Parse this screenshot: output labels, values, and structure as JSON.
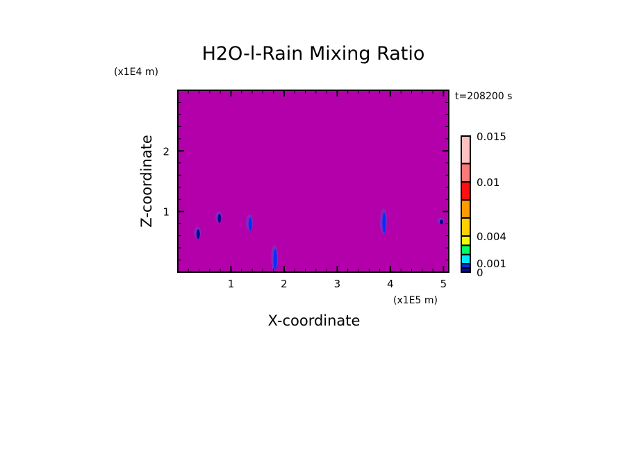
{
  "chart_data": {
    "type": "heatmap",
    "title": "H2O-l-Rain Mixing Ratio",
    "xlabel": "X-coordinate",
    "ylabel": "Z-coordinate",
    "x_unit": "(x1E5 m)",
    "y_unit": "(x1E4 m)",
    "time_label": "t=208200 s",
    "xlim": [
      0,
      5.1
    ],
    "ylim": [
      0,
      3.0
    ],
    "x_ticks": [
      "1",
      "2",
      "3",
      "4",
      "5"
    ],
    "y_ticks": [
      "1",
      "2"
    ],
    "background_color": "#b400aa",
    "colorbar": {
      "levels": [
        0,
        0.0005,
        0.001,
        0.002,
        0.003,
        0.004,
        0.006,
        0.008,
        0.01,
        0.012,
        0.015
      ],
      "colors": [
        "#0a0a96",
        "#0030ff",
        "#00e8ff",
        "#00ff60",
        "#f0ff00",
        "#ffd000",
        "#ff9a00",
        "#ff1010",
        "#ff7878",
        "#ffc0c0"
      ],
      "tick_labels": [
        "0",
        "0.001",
        "0.004",
        "0.01",
        "0.015"
      ],
      "tick_values": [
        0,
        0.001,
        0.004,
        0.01,
        0.015
      ]
    },
    "features": [
      {
        "x": 0.37,
        "z_bottom": 0.55,
        "z_top": 0.75,
        "value": 0.0004
      },
      {
        "x": 0.77,
        "z_bottom": 0.82,
        "z_top": 1.0,
        "value": 0.0004
      },
      {
        "x": 1.35,
        "z_bottom": 0.68,
        "z_top": 0.95,
        "value": 0.0005
      },
      {
        "x": 1.82,
        "z_bottom": 0.02,
        "z_top": 0.45,
        "value": 0.0006
      },
      {
        "x": 3.87,
        "z_bottom": 0.62,
        "z_top": 1.05,
        "value": 0.0006
      },
      {
        "x": 4.95,
        "z_bottom": 0.8,
        "z_top": 0.9,
        "value": 0.0002
      }
    ]
  }
}
